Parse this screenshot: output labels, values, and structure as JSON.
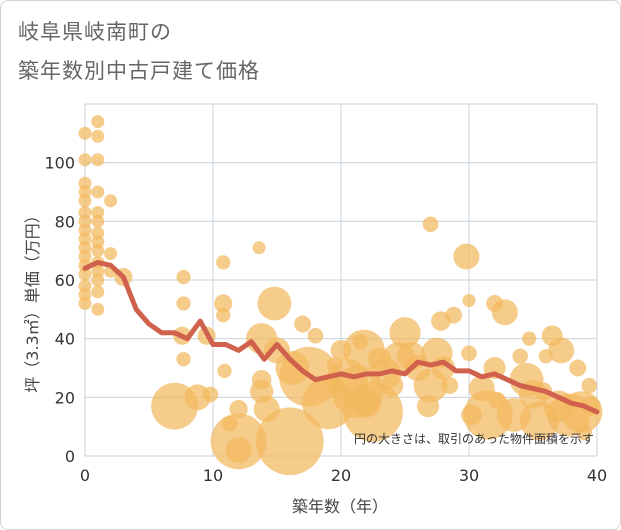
{
  "header": {
    "title_line1": "岐阜県岐南町の",
    "title_line2": "築年数別中古戸建て価格"
  },
  "chart_data": {
    "type": "scatter",
    "title": "岐阜県岐南町の築年数別中古戸建て価格",
    "xlabel": "築年数（年）",
    "ylabel": "坪（3.3㎡）単価（万円）",
    "xlim": [
      0,
      40
    ],
    "ylim": [
      0,
      120
    ],
    "xticks": [
      0,
      10,
      20,
      30,
      40
    ],
    "yticks": [
      0,
      20,
      40,
      60,
      80,
      100
    ],
    "grid": true,
    "note": "円の大きさは、取引のあった物件面積を示す",
    "colors": {
      "bubble": "#f2b95e",
      "line": "#d0614c"
    },
    "series": [
      {
        "type": "bubble",
        "points": [
          {
            "x": 0,
            "y": 110,
            "s": 1
          },
          {
            "x": 0,
            "y": 101,
            "s": 1
          },
          {
            "x": 0,
            "y": 93,
            "s": 1
          },
          {
            "x": 0,
            "y": 90,
            "s": 1
          },
          {
            "x": 0,
            "y": 87,
            "s": 1
          },
          {
            "x": 0,
            "y": 83,
            "s": 1
          },
          {
            "x": 0,
            "y": 80,
            "s": 1
          },
          {
            "x": 0,
            "y": 77,
            "s": 1
          },
          {
            "x": 0,
            "y": 74,
            "s": 1
          },
          {
            "x": 0,
            "y": 71,
            "s": 1
          },
          {
            "x": 0,
            "y": 68,
            "s": 1
          },
          {
            "x": 0,
            "y": 65,
            "s": 1
          },
          {
            "x": 0,
            "y": 62,
            "s": 1
          },
          {
            "x": 0,
            "y": 58,
            "s": 1
          },
          {
            "x": 0,
            "y": 55,
            "s": 1
          },
          {
            "x": 0,
            "y": 52,
            "s": 1
          },
          {
            "x": 1,
            "y": 114,
            "s": 1
          },
          {
            "x": 1,
            "y": 109,
            "s": 1
          },
          {
            "x": 1,
            "y": 101,
            "s": 1
          },
          {
            "x": 1,
            "y": 90,
            "s": 1
          },
          {
            "x": 1,
            "y": 83,
            "s": 1
          },
          {
            "x": 1,
            "y": 80,
            "s": 1
          },
          {
            "x": 1,
            "y": 76,
            "s": 1
          },
          {
            "x": 1,
            "y": 73,
            "s": 1
          },
          {
            "x": 1,
            "y": 70,
            "s": 1
          },
          {
            "x": 1,
            "y": 66,
            "s": 1
          },
          {
            "x": 1,
            "y": 63,
            "s": 1
          },
          {
            "x": 1,
            "y": 60,
            "s": 1
          },
          {
            "x": 1,
            "y": 56,
            "s": 1
          },
          {
            "x": 1,
            "y": 50,
            "s": 1
          },
          {
            "x": 2,
            "y": 87,
            "s": 1
          },
          {
            "x": 2,
            "y": 69,
            "s": 1
          },
          {
            "x": 2,
            "y": 63,
            "s": 1
          },
          {
            "x": 3,
            "y": 61,
            "s": 1.4
          },
          {
            "x": 7,
            "y": 17,
            "s": 3.6
          },
          {
            "x": 7.6,
            "y": 41,
            "s": 1.4
          },
          {
            "x": 7.7,
            "y": 61,
            "s": 1.1
          },
          {
            "x": 7.7,
            "y": 52,
            "s": 1.1
          },
          {
            "x": 7.7,
            "y": 33,
            "s": 1.1
          },
          {
            "x": 8.8,
            "y": 20,
            "s": 2
          },
          {
            "x": 9.5,
            "y": 41,
            "s": 1.4
          },
          {
            "x": 9.8,
            "y": 21,
            "s": 1.2
          },
          {
            "x": 10.8,
            "y": 66,
            "s": 1.1
          },
          {
            "x": 10.8,
            "y": 52,
            "s": 1.4
          },
          {
            "x": 10.8,
            "y": 48,
            "s": 1.1
          },
          {
            "x": 10.9,
            "y": 29,
            "s": 1.1
          },
          {
            "x": 11.3,
            "y": 11,
            "s": 1.2
          },
          {
            "x": 12,
            "y": 16,
            "s": 1.4
          },
          {
            "x": 12,
            "y": 5,
            "s": 4.3
          },
          {
            "x": 12,
            "y": 2,
            "s": 2
          },
          {
            "x": 13.6,
            "y": 71,
            "s": 1
          },
          {
            "x": 13.8,
            "y": 40,
            "s": 2.4
          },
          {
            "x": 13.8,
            "y": 26,
            "s": 1.5
          },
          {
            "x": 13.8,
            "y": 22,
            "s": 1.8
          },
          {
            "x": 14.2,
            "y": 16,
            "s": 2
          },
          {
            "x": 14.8,
            "y": 52,
            "s": 2.6
          },
          {
            "x": 15,
            "y": 36,
            "s": 2
          },
          {
            "x": 16,
            "y": 5,
            "s": 5.2
          },
          {
            "x": 16.2,
            "y": 30,
            "s": 2.6
          },
          {
            "x": 17,
            "y": 45,
            "s": 1.3
          },
          {
            "x": 17.5,
            "y": 27,
            "s": 4.6
          },
          {
            "x": 18,
            "y": 41,
            "s": 1.2
          },
          {
            "x": 19,
            "y": 18,
            "s": 4
          },
          {
            "x": 19.5,
            "y": 31,
            "s": 1.2
          },
          {
            "x": 20,
            "y": 36,
            "s": 1.6
          },
          {
            "x": 20.5,
            "y": 26,
            "s": 3.2
          },
          {
            "x": 21.3,
            "y": 22,
            "s": 4
          },
          {
            "x": 21.5,
            "y": 39,
            "s": 1.2
          },
          {
            "x": 21.8,
            "y": 36,
            "s": 3.2
          },
          {
            "x": 22,
            "y": 18,
            "s": 2.2
          },
          {
            "x": 22.5,
            "y": 15,
            "s": 4.6
          },
          {
            "x": 23,
            "y": 33,
            "s": 1.8
          },
          {
            "x": 23.5,
            "y": 28,
            "s": 2.4
          },
          {
            "x": 24,
            "y": 24,
            "s": 1.7
          },
          {
            "x": 24.5,
            "y": 33,
            "s": 2.6
          },
          {
            "x": 25,
            "y": 42,
            "s": 2.4
          },
          {
            "x": 25.5,
            "y": 34,
            "s": 2.2
          },
          {
            "x": 26,
            "y": 30,
            "s": 2
          },
          {
            "x": 26.8,
            "y": 17,
            "s": 1.7
          },
          {
            "x": 27,
            "y": 24,
            "s": 2.6
          },
          {
            "x": 27,
            "y": 79,
            "s": 1.2
          },
          {
            "x": 27.5,
            "y": 35,
            "s": 2.4
          },
          {
            "x": 27.8,
            "y": 46,
            "s": 1.5
          },
          {
            "x": 28,
            "y": 30,
            "s": 1.8
          },
          {
            "x": 28.5,
            "y": 24,
            "s": 1.3
          },
          {
            "x": 28.8,
            "y": 48,
            "s": 1.3
          },
          {
            "x": 29.8,
            "y": 68,
            "s": 2
          },
          {
            "x": 30,
            "y": 53,
            "s": 1
          },
          {
            "x": 30,
            "y": 35,
            "s": 1.2
          },
          {
            "x": 30.2,
            "y": 14,
            "s": 1.6
          },
          {
            "x": 31,
            "y": 23,
            "s": 2
          },
          {
            "x": 31.5,
            "y": 14,
            "s": 3.8
          },
          {
            "x": 32,
            "y": 52,
            "s": 1.3
          },
          {
            "x": 32,
            "y": 30,
            "s": 1.7
          },
          {
            "x": 32.2,
            "y": 19,
            "s": 1.3
          },
          {
            "x": 32.8,
            "y": 49,
            "s": 2
          },
          {
            "x": 33.5,
            "y": 14,
            "s": 2.6
          },
          {
            "x": 34,
            "y": 34,
            "s": 1.2
          },
          {
            "x": 34.5,
            "y": 26,
            "s": 2.6
          },
          {
            "x": 34.7,
            "y": 40,
            "s": 1.1
          },
          {
            "x": 35,
            "y": 21,
            "s": 2.2
          },
          {
            "x": 35.5,
            "y": 12,
            "s": 3
          },
          {
            "x": 35.8,
            "y": 22,
            "s": 1.4
          },
          {
            "x": 36,
            "y": 34,
            "s": 1.1
          },
          {
            "x": 36.5,
            "y": 41,
            "s": 1.6
          },
          {
            "x": 37,
            "y": 17,
            "s": 2.4
          },
          {
            "x": 37.2,
            "y": 36,
            "s": 2
          },
          {
            "x": 37.8,
            "y": 14,
            "s": 3.3
          },
          {
            "x": 38.5,
            "y": 30,
            "s": 1.3
          },
          {
            "x": 38.8,
            "y": 15,
            "s": 3.2
          },
          {
            "x": 39,
            "y": 8,
            "s": 1.2
          },
          {
            "x": 39.4,
            "y": 24,
            "s": 1.2
          },
          {
            "x": 39.5,
            "y": 17,
            "s": 1.5
          }
        ]
      },
      {
        "type": "line",
        "x": [
          0,
          1,
          2,
          3,
          4,
          5,
          6,
          7,
          8,
          9,
          10,
          11,
          12,
          13,
          14,
          15,
          16,
          17,
          18,
          19,
          20,
          21,
          22,
          23,
          24,
          25,
          26,
          27,
          28,
          29,
          30,
          31,
          32,
          33,
          34,
          35,
          36,
          37,
          38,
          39,
          40
        ],
        "y": [
          64,
          66,
          65,
          61,
          50,
          45,
          42,
          42,
          40,
          46,
          38,
          38,
          36,
          39,
          33,
          38,
          33,
          29,
          26,
          27,
          28,
          27,
          28,
          28,
          29,
          28,
          32,
          31,
          32,
          29,
          29,
          27,
          28,
          26,
          24,
          23,
          22,
          20,
          18,
          17,
          15
        ]
      }
    ]
  }
}
